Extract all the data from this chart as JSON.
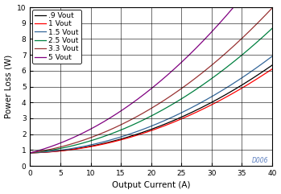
{
  "title": "",
  "xlabel": "Output Current (A)",
  "ylabel": "Power Loss (W)",
  "watermark": "D006",
  "xlim": [
    0,
    40
  ],
  "ylim": [
    0,
    10
  ],
  "xticks": [
    0,
    5,
    10,
    15,
    20,
    25,
    30,
    35,
    40
  ],
  "yticks": [
    0,
    1,
    2,
    3,
    4,
    5,
    6,
    7,
    8,
    9,
    10
  ],
  "series": [
    {
      "label": ".9 Vout",
      "color": "#000000",
      "a": 0.0032,
      "b": 0.01,
      "c": 0.82
    },
    {
      "label": "1 Vout",
      "color": "#FF0000",
      "a": 0.0031,
      "b": 0.008,
      "c": 0.82
    },
    {
      "label": "1.5 Vout",
      "color": "#336699",
      "a": 0.0034,
      "b": 0.016,
      "c": 0.82
    },
    {
      "label": "2.5 Vout",
      "color": "#008040",
      "a": 0.004,
      "b": 0.036,
      "c": 0.82
    },
    {
      "label": "3.3 Vout",
      "color": "#993333",
      "a": 0.0044,
      "b": 0.052,
      "c": 0.82
    },
    {
      "label": "5 Vout",
      "color": "#800080",
      "a": 0.0052,
      "b": 0.098,
      "c": 0.82
    }
  ],
  "legend_fontsize": 6.5,
  "tick_fontsize": 6.5,
  "label_fontsize": 7.5,
  "grid_color": "#000000",
  "grid_linewidth": 0.4,
  "line_width": 0.9
}
